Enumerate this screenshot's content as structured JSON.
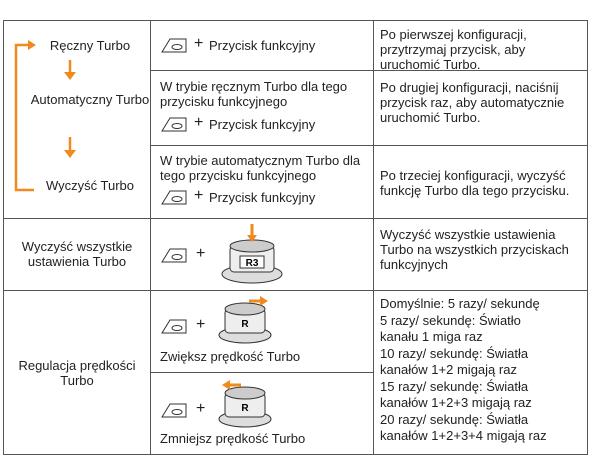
{
  "table": {
    "rows": [
      {
        "mode": "Ręczny Turbo",
        "action": {
          "plus": "+",
          "button": "Przycisk funkcyjny"
        },
        "description": "Po pierwszej konfiguracji, przytrzymaj przycisk, aby uruchomić Turbo."
      },
      {
        "mode": "Automatyczny Turbo",
        "action": {
          "condition": "W trybie ręcznym Turbo dla tego przycisku funkcyjnego",
          "plus": "+",
          "button": "Przycisk funkcyjny"
        },
        "description": "Po drugiej konfiguracji, naciśnij przycisk raz, aby automatycznie uruchomić Turbo."
      },
      {
        "mode": "Wyczyść Turbo",
        "action": {
          "condition": "W trybie automatycznym Turbo dla tego przycisku funkcyjnego",
          "plus": "+",
          "button": "Przycisk funkcyjny"
        },
        "description": "Po trzeciej konfiguracji, wyczyść funkcję Turbo dla tego przycisku."
      },
      {
        "mode": "Wyczyść wszystkie ustawienia Turbo",
        "action": {
          "plus": "+",
          "stick": "R3"
        },
        "description": "Wyczyść wszystkie ustawienia Turbo na wszystkich przyciskach funkcyjnych"
      },
      {
        "mode": "Regulacja prędkości Turbo",
        "adjustments": [
          {
            "plus": "+",
            "stick": "R",
            "label": "Zwiększ prędkość Turbo"
          },
          {
            "plus": "+",
            "stick": "R",
            "label": "Zmniejsz prędkość Turbo"
          }
        ],
        "description_lines": [
          "Domyślnie: 5 razy/ sekundę",
          "5 razy/ sekundę: Światło",
          "kanału 1 miga raz",
          "10 razy/ sekundę: Światła",
          "kanałów 1+2 migają raz",
          "15 razy/ sekundę: Światła",
          "kanałów 1+2+3 migają raz",
          "20 razy/ sekundę: Światła",
          "kanałów 1+2+3+4 migają raz"
        ]
      }
    ]
  }
}
